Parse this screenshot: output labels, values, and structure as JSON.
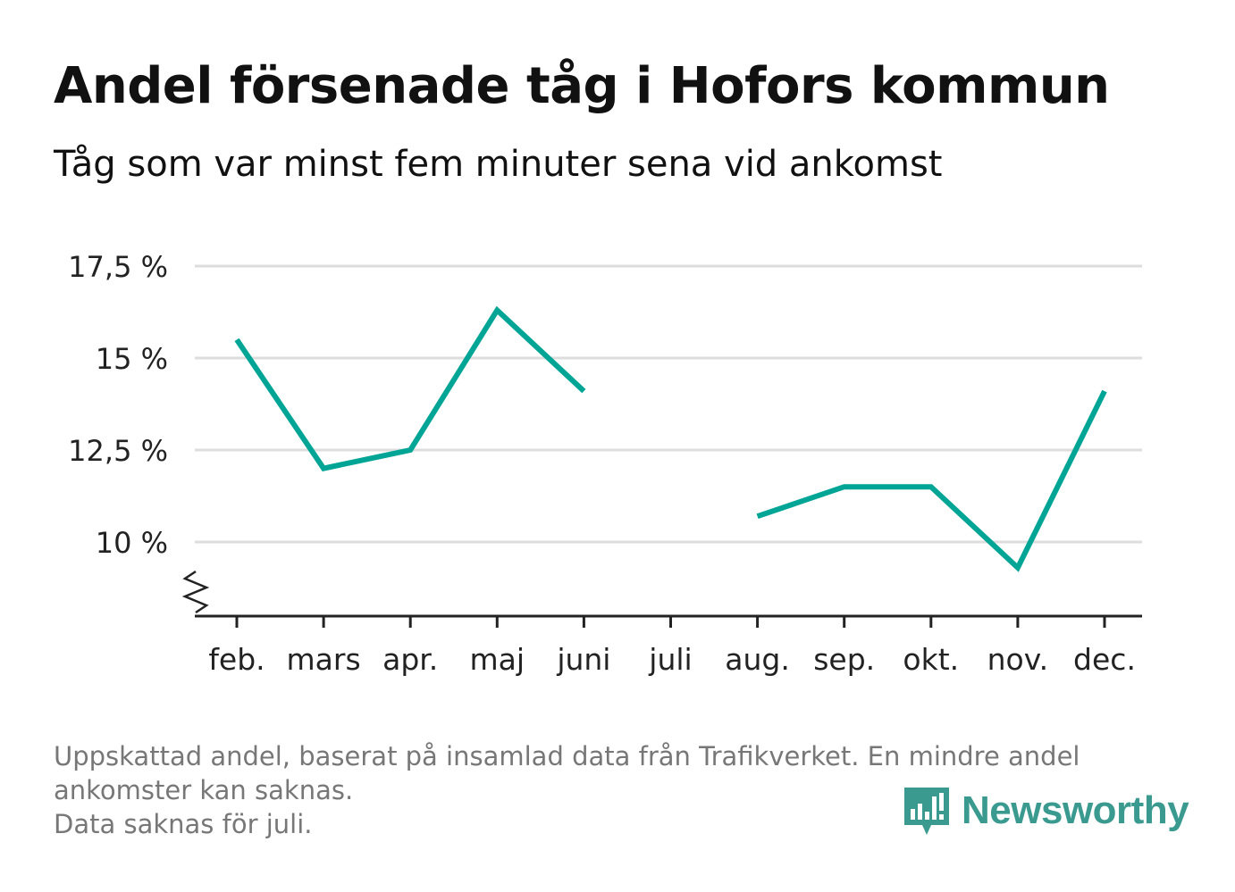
{
  "header": {
    "title": "Andel försenade tåg i Hofors kommun",
    "subtitle": "Tåg som var minst fem minuter sena vid ankomst"
  },
  "chart_data": {
    "type": "line",
    "title": "Andel försenade tåg i Hofors kommun",
    "subtitle": "Tåg som var minst fem minuter sena vid ankomst",
    "xlabel": "",
    "ylabel": "",
    "categories": [
      "feb.",
      "mars",
      "apr.",
      "maj",
      "juni",
      "juli",
      "aug.",
      "sep.",
      "okt.",
      "nov.",
      "dec."
    ],
    "series": [
      {
        "values": [
          15.5,
          12.0,
          12.5,
          16.3,
          14.1,
          null,
          10.7,
          11.5,
          11.5,
          9.3,
          14.1
        ]
      }
    ],
    "y_ticks": [
      10,
      12.5,
      15,
      17.5
    ],
    "y_tick_labels": [
      "10 %",
      "12,5 %",
      "15 %",
      "17,5 %"
    ],
    "ylim": [
      8,
      17.5
    ],
    "y_axis_break": true,
    "grid": true,
    "colors": {
      "line": "#00a596",
      "grid": "#dddddd",
      "axis": "#222222"
    }
  },
  "footnote": {
    "lines": [
      "Uppskattad andel, baserat på insamlad data från Trafikverket. En mindre andel",
      "ankomster kan saknas.",
      "Data saknas för juli."
    ]
  },
  "brand": {
    "name": "Newsworthy",
    "icon": "newsworthy-logo-icon",
    "color": "#3a9a8f"
  }
}
